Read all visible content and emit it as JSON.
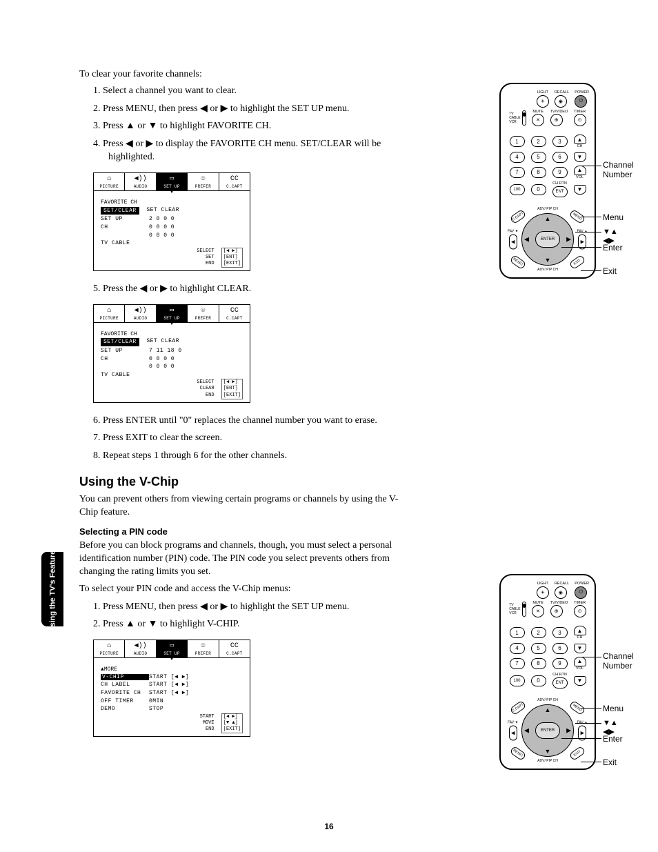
{
  "intro": "To clear your favorite channels:",
  "steps1": [
    "Select a channel you want to clear.",
    "Press MENU, then press ◀ or ▶ to highlight the SET UP menu.",
    "Press ▲ or ▼ to highlight FAVORITE CH.",
    "Press ◀ or ▶ to display the FAVORITE CH menu. SET/CLEAR will be highlighted."
  ],
  "step5": "Press the ◀ or ▶ to highlight CLEAR.",
  "steps2": [
    "Press ENTER until \"0\" replaces the channel number you want to erase.",
    "Press EXIT to clear the screen.",
    "Repeat steps 1 through 6 for the other channels."
  ],
  "section_heading": "Using the V-Chip",
  "section_body": "You can prevent others from viewing certain programs or channels by using the V-Chip feature.",
  "sub_heading": "Selecting a PIN code",
  "sub_body1": "Before you can block programs and channels, though, you must select a personal identification number (PIN) code. The PIN code you select prevents others from changing the rating limits you set.",
  "sub_body2": "To select your PIN code and access the V-Chip menus:",
  "steps3": [
    "Press MENU, then press ◀ or ▶ to highlight the SET UP menu.",
    "Press ▲ or ▼ to highlight V-CHIP."
  ],
  "osd_tabs": [
    "PICTURE",
    "AUDIO",
    "SET UP",
    "PREFER",
    "C.CAPT"
  ],
  "osd_tab_icons": [
    "⚙",
    "🔊",
    "📺",
    "👪",
    "CC"
  ],
  "osd1": {
    "title": "FAVORITE CH",
    "hl": "SET/CLEAR",
    "hl_right": "SET  CLEAR",
    "rows": [
      [
        "SET UP",
        "2    0    0    0"
      ],
      [
        "    CH",
        "0    0    0    0"
      ],
      [
        "",
        "0    0    0    0"
      ],
      [
        "TV CABLE",
        ""
      ]
    ],
    "hints_left": [
      "SELECT",
      "SET",
      "END"
    ],
    "hints_right": [
      "[◀ ▶]",
      "[ENT]",
      "[EXIT]"
    ]
  },
  "osd2": {
    "title": "FAVORITE CH",
    "hl": "SET/CLEAR",
    "hl_right": "SET  CLEAR",
    "rows": [
      [
        "SET UP",
        "7   11   18    0"
      ],
      [
        "    CH",
        "0    0    0    0"
      ],
      [
        "",
        "0    0    0    0"
      ],
      [
        "TV CABLE",
        ""
      ]
    ],
    "hints_left": [
      "SELECT",
      "CLEAR",
      "END"
    ],
    "hints_right": [
      "[◀ ▶]",
      "[ENT]",
      "[EXIT]"
    ]
  },
  "osd3": {
    "title": "▲MORE",
    "rows_menu": [
      [
        "V-CHIP",
        "START  [◀ ▶]",
        true
      ],
      [
        "CH LABEL",
        "START  [◀ ▶]",
        false
      ],
      [
        "FAVORITE CH",
        "START  [◀ ▶]",
        false
      ],
      [
        "OFF TIMER",
        "0MIN",
        false
      ],
      [
        "DEMO",
        "STOP",
        false
      ]
    ],
    "hints_left": [
      "START",
      "MOVE",
      "END"
    ],
    "hints_right": [
      "[◀ ▶]",
      "[▼ ▲]",
      "[EXIT]"
    ]
  },
  "sidebar_label": "Using the TV's Features",
  "remote": {
    "top_labels": [
      "LIGHT",
      "RECALL",
      "POWER"
    ],
    "row2_labels": [
      "MUTE",
      "TV/VIDEO",
      "TIMER"
    ],
    "source_labels": [
      "TV",
      "CABLE",
      "VCR"
    ],
    "nums": [
      [
        "1",
        "2",
        "3"
      ],
      [
        "4",
        "5",
        "6"
      ],
      [
        "7",
        "8",
        "9"
      ],
      [
        "100",
        "0",
        "ENT"
      ]
    ],
    "ch_label": "CH",
    "vol_label": "VOL",
    "chrtn_label": "CH RTN",
    "dpad_center": "ENTER",
    "dpad_top": "ADV/\nPIP CH",
    "dpad_bot": "ADV/\nPIP CH",
    "fav_l": "FAV ▼",
    "fav_r": "FAV ▲",
    "corner_tl": "C.CAPT",
    "corner_tr": "MENU",
    "corner_bl": "RESET",
    "corner_br": "EXIT"
  },
  "callouts": {
    "ch_number": "Channel Number",
    "menu": "Menu",
    "arrows": "▼▲ ◀▶",
    "enter": "Enter",
    "exit": "Exit"
  },
  "page_number": "16"
}
